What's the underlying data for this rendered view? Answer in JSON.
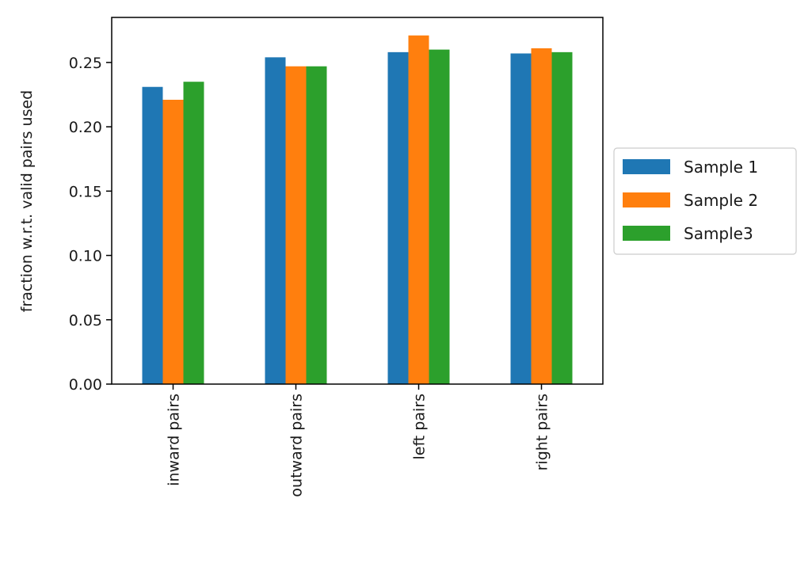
{
  "chart_data": {
    "type": "bar",
    "title": "",
    "xlabel": "",
    "ylabel": "fraction w.r.t. valid pairs used",
    "categories": [
      "inward pairs",
      "outward pairs",
      "left pairs",
      "right pairs"
    ],
    "series": [
      {
        "name": "Sample 1",
        "color": "#1f77b4",
        "values": [
          0.231,
          0.254,
          0.258,
          0.257
        ]
      },
      {
        "name": "Sample 2",
        "color": "#ff7f0e",
        "values": [
          0.221,
          0.247,
          0.271,
          0.261
        ]
      },
      {
        "name": "Sample3",
        "color": "#2ca02c",
        "values": [
          0.235,
          0.247,
          0.26,
          0.258
        ]
      }
    ],
    "ylim": [
      0,
      0.285
    ],
    "yticks": [
      "0.00",
      "0.05",
      "0.10",
      "0.15",
      "0.20",
      "0.25"
    ],
    "ytick_values": [
      0,
      0.05,
      0.1,
      0.15,
      0.2,
      0.25
    ],
    "grid": false,
    "legend_position": "outside-right"
  }
}
